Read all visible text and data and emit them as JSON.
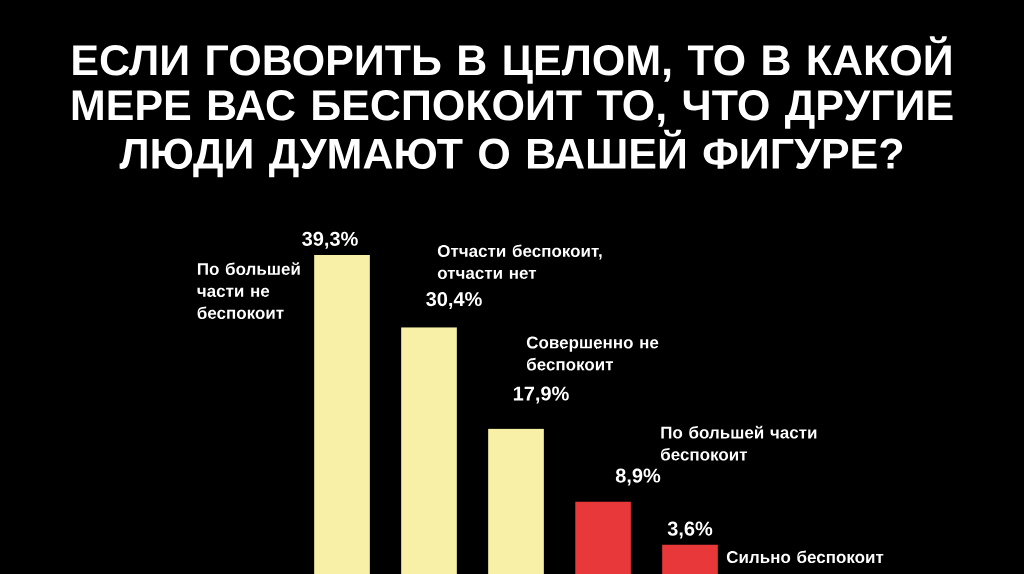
{
  "chart_data": {
    "type": "bar",
    "title": "ЕСЛИ ГОВОРИТЬ В ЦЕЛОМ, ТО В КАКОЙ МЕРЕ ВАС БЕСПОКОИТ ТО, ЧТО ДРУГИЕ ЛЮДИ ДУМАЮТ О ВАШЕЙ ФИГУРЕ?",
    "categories": [
      null,
      null,
      null,
      null,
      null
    ],
    "values": [
      39.3,
      30.4,
      17.9,
      8.9,
      3.6
    ],
    "colors": [
      "#f7f0a6",
      "#f7f0a6",
      "#f7f0a6",
      "#e8383a",
      "#e8383a"
    ],
    "value_labels": [
      "39,3%",
      "30,4%",
      "17,9%",
      "8,9%",
      "3,6%"
    ],
    "annotations": [
      "По большей части не беспокоит",
      "Отчасти беспокоит, отчасти нет",
      "Совершенно не беспокоит",
      "По большей части беспокоит",
      "Сильно беспокоит"
    ]
  }
}
